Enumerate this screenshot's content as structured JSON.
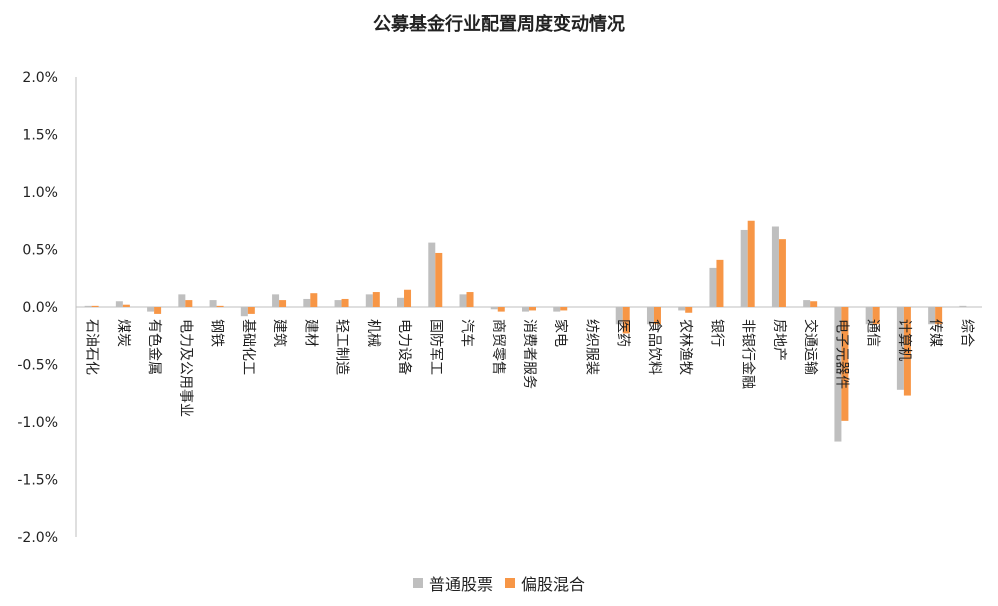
{
  "chart_data": {
    "type": "bar",
    "title": "公募基金行业配置周度变动情况",
    "xlabel": "",
    "ylabel": "",
    "ylim": [
      -2.0,
      2.0
    ],
    "yticks": [
      "2.0%",
      "1.5%",
      "1.0%",
      "0.5%",
      "0.0%",
      "-0.5%",
      "-1.0%",
      "-1.5%",
      "-2.0%"
    ],
    "ytick_values": [
      2.0,
      1.5,
      1.0,
      0.5,
      0.0,
      -0.5,
      -1.0,
      -1.5,
      -2.0
    ],
    "grid": false,
    "legend_position": "bottom",
    "categories": [
      "石油石化",
      "煤炭",
      "有色金属",
      "电力及公用事业",
      "钢铁",
      "基础化工",
      "建筑",
      "建材",
      "轻工制造",
      "机械",
      "电力设备",
      "国防军工",
      "汽车",
      "商贸零售",
      "消费者服务",
      "家电",
      "纺织服装",
      "医药",
      "食品饮料",
      "农林渔牧",
      "银行",
      "非银行金融",
      "房地产",
      "交通运输",
      "电子元器件",
      "通信",
      "计算机",
      "传媒",
      "综合"
    ],
    "series": [
      {
        "name": "普通股票",
        "color": "#bfbfbf",
        "values": [
          0.01,
          0.05,
          -0.04,
          0.11,
          0.06,
          -0.08,
          0.11,
          0.07,
          0.06,
          0.11,
          0.08,
          0.56,
          0.11,
          -0.02,
          -0.04,
          -0.04,
          0.0,
          -0.15,
          -0.15,
          -0.03,
          0.34,
          0.67,
          0.7,
          0.06,
          -1.17,
          -0.15,
          -0.72,
          -0.15,
          0.01
        ]
      },
      {
        "name": "偏股混合",
        "color": "#f79646",
        "values": [
          0.01,
          0.02,
          -0.06,
          0.06,
          0.01,
          -0.06,
          0.06,
          0.12,
          0.07,
          0.13,
          0.15,
          0.47,
          0.13,
          -0.04,
          -0.03,
          -0.03,
          0.0,
          -0.23,
          -0.15,
          -0.05,
          0.41,
          0.75,
          0.59,
          0.05,
          -0.99,
          -0.15,
          -0.77,
          -0.15,
          0.0
        ]
      }
    ]
  }
}
